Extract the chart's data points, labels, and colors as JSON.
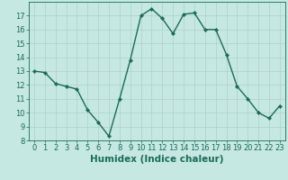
{
  "x": [
    0,
    1,
    2,
    3,
    4,
    5,
    6,
    7,
    8,
    9,
    10,
    11,
    12,
    13,
    14,
    15,
    16,
    17,
    18,
    19,
    20,
    21,
    22,
    23
  ],
  "y": [
    13,
    12.9,
    12.1,
    11.9,
    11.7,
    10.2,
    9.3,
    8.3,
    11.0,
    13.8,
    17.0,
    17.5,
    16.8,
    15.7,
    17.1,
    17.2,
    16.0,
    16.0,
    14.2,
    11.9,
    11.0,
    10.0,
    9.6,
    10.5
  ],
  "line_color": "#1a6b5a",
  "marker": "D",
  "markersize": 2.2,
  "linewidth": 1.0,
  "bg_color": "#c5e8e2",
  "grid_color": "#b0d0ca",
  "xlabel": "Humidex (Indice chaleur)",
  "xlim": [
    -0.5,
    23.5
  ],
  "ylim": [
    8,
    18.0
  ],
  "yticks": [
    8,
    9,
    10,
    11,
    12,
    13,
    14,
    15,
    16,
    17
  ],
  "xticks": [
    0,
    1,
    2,
    3,
    4,
    5,
    6,
    7,
    8,
    9,
    10,
    11,
    12,
    13,
    14,
    15,
    16,
    17,
    18,
    19,
    20,
    21,
    22,
    23
  ],
  "tick_label_fontsize": 6.0,
  "xlabel_fontsize": 7.5,
  "text_color": "#1a6b5a"
}
